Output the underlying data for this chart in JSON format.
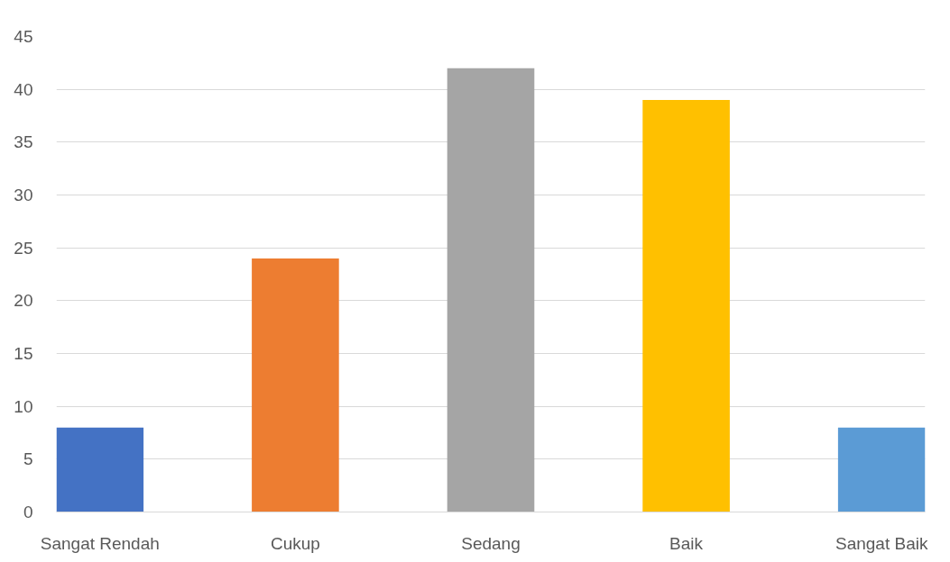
{
  "chart_data": {
    "type": "bar",
    "categories": [
      "Sangat Rendah",
      "Cukup",
      "Sedang",
      "Baik",
      "Sangat Baik"
    ],
    "values": [
      8,
      24,
      42,
      39,
      8
    ],
    "colors": [
      "#4472c4",
      "#ed7d31",
      "#a5a5a5",
      "#ffc000",
      "#5b9bd5"
    ],
    "ylim": [
      0,
      45
    ],
    "yticks": [
      0,
      5,
      10,
      15,
      20,
      25,
      30,
      35,
      40,
      45
    ],
    "grid": "y"
  }
}
